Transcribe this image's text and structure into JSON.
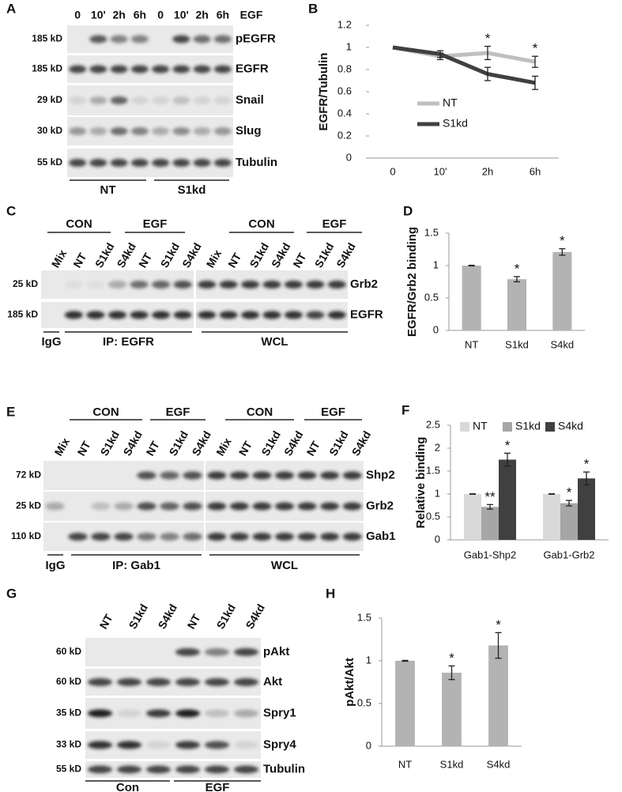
{
  "panel_labels": [
    "A",
    "B",
    "C",
    "D",
    "E",
    "F",
    "G",
    "H"
  ],
  "blots": [
    {
      "lanes": [
        "0",
        "10'",
        "2h",
        "6h",
        "0",
        "10'",
        "2h",
        "6h"
      ],
      "treatment": "EGF",
      "rows": [
        {
          "size": "185 kD",
          "name": "pEGFR"
        },
        {
          "size": "185 kD",
          "name": "EGFR"
        },
        {
          "size": "29 kD",
          "name": "Snail"
        },
        {
          "size": "30 kD",
          "name": "Slug"
        },
        {
          "size": "55 kD",
          "name": "Tubulin"
        }
      ],
      "footer": [
        "NT",
        "S1kd"
      ]
    },
    {
      "headers": [
        "CON",
        "EGF",
        "CON",
        "EGF"
      ],
      "lanes": [
        "Mix",
        "NT",
        "S1kd",
        "S4kd",
        "NT",
        "S1kd",
        "S4kd",
        "Mix",
        "NT",
        "S1kd",
        "S4kd",
        "NT",
        "S1kd",
        "S4kd"
      ],
      "rows": [
        {
          "size": "25 kD",
          "name": "Grb2"
        },
        {
          "size": "185 kD",
          "name": "EGFR"
        }
      ],
      "footer": [
        "IgG",
        "IP: EGFR",
        "WCL"
      ]
    },
    {
      "headers": [
        "CON",
        "EGF",
        "CON",
        "EGF"
      ],
      "lanes": [
        "Mix",
        "NT",
        "S1kd",
        "S4kd",
        "NT",
        "S1kd",
        "S4kd",
        "Mix",
        "NT",
        "S1kd",
        "S4kd",
        "NT",
        "S1kd",
        "S4kd"
      ],
      "rows": [
        {
          "size": "72 kD",
          "name": "Shp2"
        },
        {
          "size": "25 kD",
          "name": "Grb2"
        },
        {
          "size": "110 kD",
          "name": "Gab1"
        }
      ],
      "footer": [
        "IgG",
        "IP: Gab1",
        "WCL"
      ]
    },
    {
      "lanes": [
        "NT",
        "S1kd",
        "S4kd",
        "NT",
        "S1kd",
        "S4kd"
      ],
      "rows": [
        {
          "size": "60 kD",
          "name": "pAkt"
        },
        {
          "size": "60 kD",
          "name": "Akt"
        },
        {
          "size": "35 kD",
          "name": "Spry1"
        },
        {
          "size": "33 kD",
          "name": "Spry4"
        },
        {
          "size": "55 kD",
          "name": "Tubulin"
        }
      ],
      "footer": [
        "Con",
        "EGF"
      ]
    }
  ],
  "chart_data": [
    {
      "type": "line",
      "y_label": "EGFR/Tubulin",
      "categories": [
        "0",
        "10'",
        "2h",
        "6h"
      ],
      "series": [
        {
          "name": "NT",
          "color": "#bfbfbf",
          "values": [
            1,
            0.92,
            0.95,
            0.87
          ],
          "errors": [
            null,
            0.03,
            0.06,
            0.05
          ],
          "annotations": [
            null,
            null,
            "*",
            "*"
          ]
        },
        {
          "name": "S1kd",
          "color": "#404040",
          "values": [
            1,
            0.94,
            0.76,
            0.68
          ],
          "errors": [
            null,
            0.03,
            0.06,
            0.06
          ]
        }
      ],
      "ylim": [
        0,
        1.2
      ],
      "yticks": [
        0,
        0.2,
        0.4,
        0.6,
        0.8,
        1,
        1.2
      ],
      "legend": "right"
    },
    {
      "type": "bar",
      "y_label": "EGFR/Grb2 binding",
      "categories": [
        "NT",
        "S1kd",
        "S4kd"
      ],
      "values": [
        1,
        0.79,
        1.21
      ],
      "errors": [
        0.005,
        0.04,
        0.05
      ],
      "annotations": [
        null,
        "*",
        "*"
      ],
      "color": "#b3b3b3",
      "ylim": [
        0,
        1.5
      ],
      "yticks": [
        0,
        0.5,
        1,
        1.5
      ]
    },
    {
      "type": "bar",
      "y_label": "Relative binding",
      "categories": [
        "Gab1-Shp2",
        "Gab1-Grb2"
      ],
      "series": [
        {
          "name": "NT",
          "color": "#d9d9d9",
          "values": [
            1,
            1
          ],
          "errors": [
            0.005,
            0.005
          ]
        },
        {
          "name": "S1kd",
          "color": "#a6a6a6",
          "values": [
            0.72,
            0.8
          ],
          "errors": [
            0.05,
            0.06
          ],
          "annotations": [
            "**",
            "*"
          ]
        },
        {
          "name": "S4kd",
          "color": "#404040",
          "values": [
            1.75,
            1.34
          ],
          "errors": [
            0.14,
            0.14
          ],
          "annotations": [
            "*",
            "*"
          ]
        }
      ],
      "ylim": [
        0,
        2.5
      ],
      "yticks": [
        0,
        0.5,
        1,
        1.5,
        2,
        2.5
      ],
      "legend": "top"
    },
    {
      "type": "bar",
      "y_label": "pAkt/Akt",
      "categories": [
        "NT",
        "S1kd",
        "S4kd"
      ],
      "values": [
        1,
        0.86,
        1.18
      ],
      "errors": [
        0.005,
        0.08,
        0.15
      ],
      "annotations": [
        null,
        "*",
        "*"
      ],
      "color": "#b3b3b3",
      "ylim": [
        0,
        1.5
      ],
      "yticks": [
        0,
        0.5,
        1,
        1.5
      ]
    }
  ]
}
